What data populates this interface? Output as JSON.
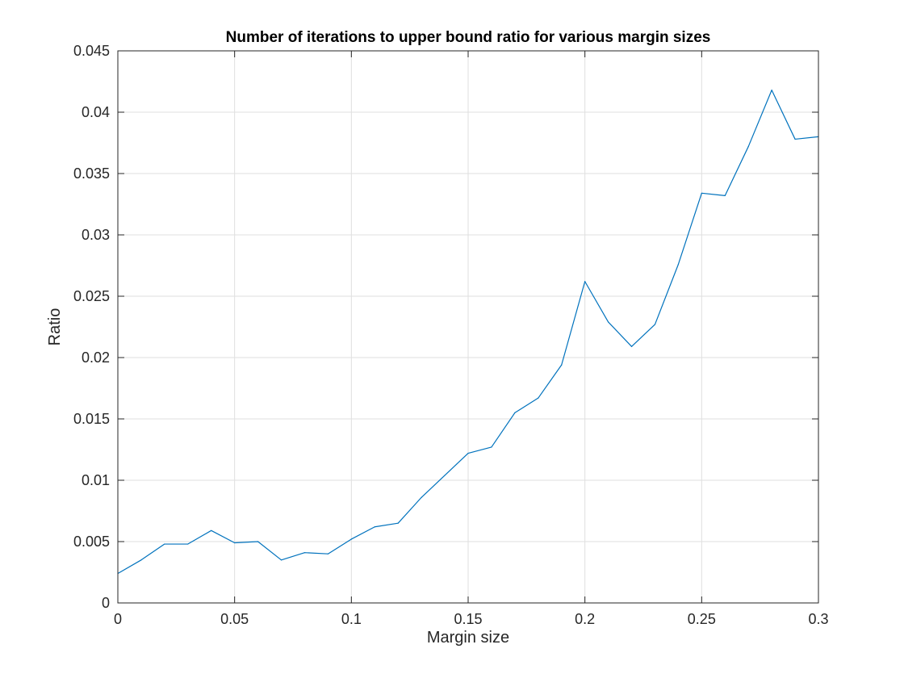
{
  "chart_data": {
    "type": "line",
    "title": "Number of iterations to upper bound ratio for various margin sizes",
    "xlabel": "Margin size",
    "ylabel": "Ratio",
    "xlim": [
      0,
      0.3
    ],
    "ylim": [
      0,
      0.045
    ],
    "grid": true,
    "x_ticks": [
      "0",
      "0.05",
      "0.1",
      "0.15",
      "0.2",
      "0.25",
      "0.3"
    ],
    "y_ticks": [
      "0",
      "0.005",
      "0.01",
      "0.015",
      "0.02",
      "0.025",
      "0.03",
      "0.035",
      "0.04",
      "0.045"
    ],
    "series": [
      {
        "color": "#0072bd",
        "x": [
          0,
          0.01,
          0.02,
          0.03,
          0.04,
          0.05,
          0.06,
          0.07,
          0.08,
          0.09,
          0.1,
          0.11,
          0.12,
          0.13,
          0.14,
          0.15,
          0.16,
          0.17,
          0.18,
          0.19,
          0.2,
          0.21,
          0.22,
          0.23,
          0.24,
          0.25,
          0.26,
          0.27,
          0.28,
          0.29,
          0.3
        ],
        "y": [
          0.0024,
          0.0035,
          0.0048,
          0.0048,
          0.0059,
          0.0049,
          0.005,
          0.0035,
          0.0041,
          0.004,
          0.0052,
          0.0062,
          0.0065,
          0.0086,
          0.0104,
          0.0122,
          0.0127,
          0.0155,
          0.0167,
          0.0194,
          0.0262,
          0.0229,
          0.0209,
          0.0227,
          0.0276,
          0.0334,
          0.0332,
          0.0372,
          0.0418,
          0.0378,
          0.038
        ]
      }
    ]
  }
}
